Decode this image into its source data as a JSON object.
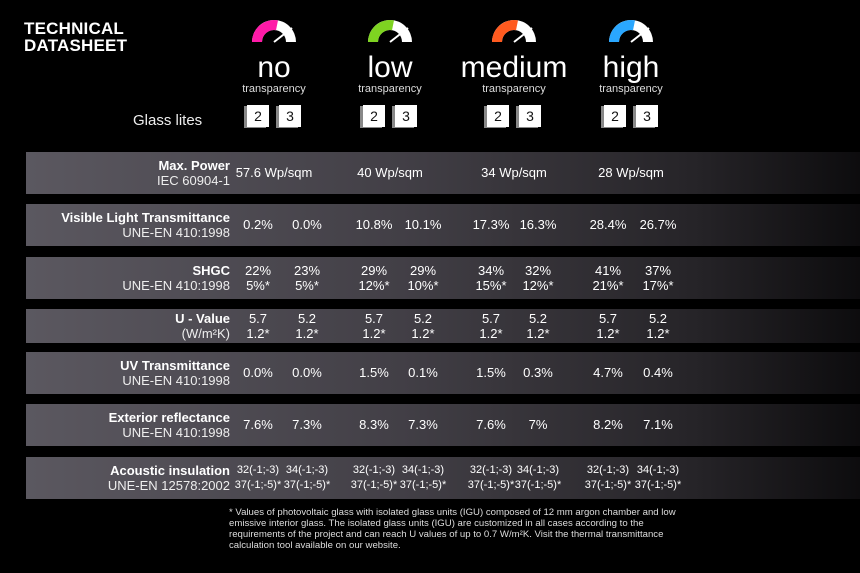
{
  "title_line1": "TECHNICAL",
  "title_line2": "DATASHEET",
  "glass_lites_label": "Glass lites",
  "columns": [
    {
      "level": "no",
      "sub": "transparency",
      "color": "#ff1aa8",
      "lites": [
        "2",
        "3"
      ]
    },
    {
      "level": "low",
      "sub": "transparency",
      "color": "#7ed321",
      "lites": [
        "2",
        "3"
      ]
    },
    {
      "level": "medium",
      "sub": "transparency",
      "color": "#ff5a1f",
      "lites": [
        "2",
        "3"
      ]
    },
    {
      "level": "high",
      "sub": "transparency",
      "color": "#2aa7ff",
      "lites": [
        "2",
        "3"
      ]
    }
  ],
  "rows": [
    {
      "bold": "Max. Power",
      "norm": "IEC 60904-1",
      "values": [
        "57.6 Wp/sqm",
        "40 Wp/sqm",
        "34 Wp/sqm",
        "28 Wp/sqm"
      ]
    },
    {
      "bold": "Visible Light Transmittance",
      "norm": "UNE-EN 410:1998",
      "values": [
        "0.2%",
        "0.0%",
        "10.8%",
        "10.1%",
        "17.3%",
        "16.3%",
        "28.4%",
        "26.7%"
      ]
    },
    {
      "bold": "SHGC",
      "norm": "UNE-EN 410:1998",
      "values": [
        [
          "22%",
          "5%*"
        ],
        [
          "23%",
          "5%*"
        ],
        [
          "29%",
          "12%*"
        ],
        [
          "29%",
          "10%*"
        ],
        [
          "34%",
          "15%*"
        ],
        [
          "32%",
          "12%*"
        ],
        [
          "41%",
          "21%*"
        ],
        [
          "37%",
          "17%*"
        ]
      ]
    },
    {
      "bold": "U - Value",
      "norm": "(W/m²K)",
      "values": [
        [
          "5.7",
          "1.2*"
        ],
        [
          "5.2",
          "1.2*"
        ],
        [
          "5.7",
          "1.2*"
        ],
        [
          "5.2",
          "1.2*"
        ],
        [
          "5.7",
          "1.2*"
        ],
        [
          "5.2",
          "1.2*"
        ],
        [
          "5.7",
          "1.2*"
        ],
        [
          "5.2",
          "1.2*"
        ]
      ]
    },
    {
      "bold": "UV Transmittance",
      "norm": "UNE-EN 410:1998",
      "values": [
        "0.0%",
        "0.0%",
        "1.5%",
        "0.1%",
        "1.5%",
        "0.3%",
        "4.7%",
        "0.4%"
      ]
    },
    {
      "bold": "Exterior reflectance",
      "norm": "UNE-EN 410:1998",
      "values": [
        "7.6%",
        "7.3%",
        "8.3%",
        "7.3%",
        "7.6%",
        "7%",
        "8.2%",
        "7.1%"
      ]
    },
    {
      "bold": "Acoustic insulation",
      "norm": "UNE-EN 12578:2002",
      "values": [
        [
          "32(-1;-3)",
          "37(-1;-5)*"
        ],
        [
          "34(-1;-3)",
          "37(-1;-5)*"
        ],
        [
          "32(-1;-3)",
          "37(-1;-5)*"
        ],
        [
          "34(-1;-3)",
          "37(-1;-5)*"
        ],
        [
          "32(-1;-3)",
          "37(-1;-5)*"
        ],
        [
          "34(-1;-3)",
          "37(-1;-5)*"
        ],
        [
          "32(-1;-3)",
          "37(-1;-5)*"
        ],
        [
          "34(-1;-3)",
          "37(-1;-5)*"
        ]
      ]
    }
  ],
  "footnote": "* Values of photovoltaic glass with  isolated glass units (IGU) composed of 12 mm argon chamber and low emissive interior glass. The isolated glass units (IGU) are customized in all cases according to the requirements of the project and can reach U values of up to 0.7 W/m²K. Visit the thermal transmittance calculation tool  available on our website."
}
